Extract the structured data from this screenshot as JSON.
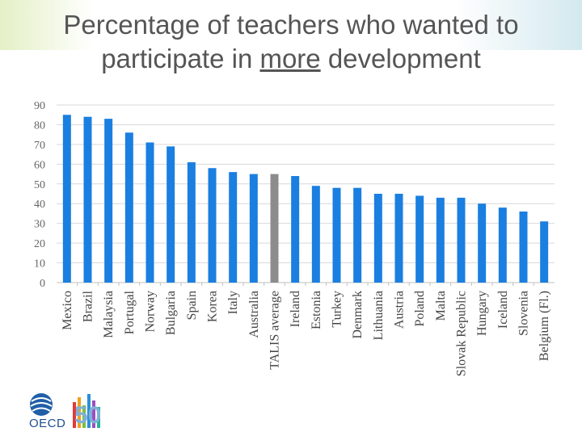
{
  "title": {
    "before": "Percentage of teachers who wanted to participate in ",
    "emphasis": "more",
    "after": " development"
  },
  "logo": {
    "name": "OECD",
    "anniversary": "50"
  },
  "colors": {
    "bar": "#1a7fe0",
    "highlight": "#8c8c8c",
    "grid": "#d9d9d9",
    "tick_text": "#666666"
  },
  "chart_data": {
    "type": "bar",
    "title": "Percentage of teachers who wanted to participate in more development",
    "xlabel": "",
    "ylabel": "",
    "ylim": [
      0,
      90
    ],
    "yticks": [
      0,
      10,
      20,
      30,
      40,
      50,
      60,
      70,
      80,
      90
    ],
    "grid": true,
    "categories": [
      "Mexico",
      "Brazil",
      "Malaysia",
      "Portugal",
      "Norway",
      "Bulgaria",
      "Spain",
      "Korea",
      "Italy",
      "Australia",
      "TALIS average",
      "Ireland",
      "Estonia",
      "Turkey",
      "Denmark",
      "Lithuania",
      "Austria",
      "Poland",
      "Malta",
      "Slovak Republic",
      "Hungary",
      "Iceland",
      "Slovenia",
      "Belgium (Fl.)"
    ],
    "values": [
      85,
      84,
      83,
      76,
      71,
      69,
      61,
      58,
      56,
      55,
      55,
      54,
      49,
      48,
      48,
      45,
      45,
      44,
      43,
      43,
      40,
      38,
      36,
      31
    ],
    "highlight_category": "TALIS average"
  }
}
